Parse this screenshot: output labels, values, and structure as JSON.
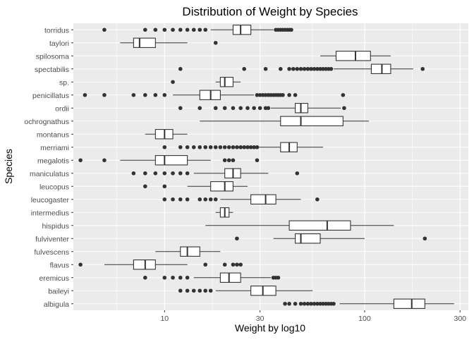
{
  "chart_data": {
    "type": "boxplot",
    "title": "Distribution of Weight by Species",
    "xlabel": "Weight by log10",
    "ylabel": "Species",
    "xscale": "log10",
    "xlim": [
      3.5,
      330
    ],
    "x_ticks": [
      10,
      30,
      100,
      300
    ],
    "grid": true,
    "legend": "none",
    "colors": {
      "panel": "#EBEBEB",
      "grid_major": "#FFFFFF",
      "box_fill": "#FFFFFF",
      "box_stroke": "#333333",
      "point": "#333333",
      "axis_text": "#4D4D4D",
      "title_text": "#000000"
    },
    "categories": [
      "albigula",
      "baileyi",
      "eremicus",
      "flavus",
      "fulvescens",
      "fulviventer",
      "hispidus",
      "intermedius",
      "leucogaster",
      "leucopus",
      "maniculatus",
      "megalotis",
      "merriami",
      "montanus",
      "ochrognathus",
      "ordii",
      "penicillatus",
      "sp.",
      "spectabilis",
      "spilosoma",
      "taylori",
      "torridus"
    ],
    "series": [
      {
        "species": "albigula",
        "whisker_low": 75,
        "q1": 140,
        "median": 172,
        "q3": 200,
        "whisker_high": 280,
        "outliers": [
          40,
          42,
          45,
          48,
          50,
          52,
          54,
          56,
          58,
          60,
          62,
          64,
          66,
          68,
          70
        ]
      },
      {
        "species": "baileyi",
        "whisker_low": 18,
        "q1": 27,
        "median": 31,
        "q3": 36,
        "whisker_high": 55,
        "outliers": [
          12,
          13,
          14,
          15,
          16,
          17
        ]
      },
      {
        "species": "eremicus",
        "whisker_low": 14,
        "q1": 19,
        "median": 21,
        "q3": 24,
        "whisker_high": 34,
        "outliers": [
          8,
          10,
          11,
          12,
          13,
          35,
          36,
          37
        ]
      },
      {
        "species": "flavus",
        "whisker_low": 5,
        "q1": 7,
        "median": 8,
        "q3": 9,
        "whisker_high": 13,
        "outliers": [
          3.8,
          16,
          20,
          22,
          23,
          24
        ]
      },
      {
        "species": "fulvescens",
        "whisker_low": 9,
        "q1": 12,
        "median": 13,
        "q3": 15,
        "whisker_high": 19,
        "outliers": []
      },
      {
        "species": "fulviventer",
        "whisker_low": 35,
        "q1": 45,
        "median": 48,
        "q3": 60,
        "whisker_high": 100,
        "outliers": [
          23,
          200
        ]
      },
      {
        "species": "hispidus",
        "whisker_low": 16,
        "q1": 42,
        "median": 65,
        "q3": 85,
        "whisker_high": 140,
        "outliers": []
      },
      {
        "species": "intermedius",
        "whisker_low": 18,
        "q1": 19,
        "median": 20,
        "q3": 21,
        "whisker_high": 22,
        "outliers": []
      },
      {
        "species": "leucogaster",
        "whisker_low": 19,
        "q1": 27,
        "median": 32,
        "q3": 36,
        "whisker_high": 48,
        "outliers": [
          10,
          11,
          12,
          13,
          15,
          16,
          17,
          18,
          58
        ]
      },
      {
        "species": "leucopus",
        "whisker_low": 13,
        "q1": 17,
        "median": 20,
        "q3": 22,
        "whisker_high": 26,
        "outliers": [
          8,
          10
        ]
      },
      {
        "species": "maniculatus",
        "whisker_low": 14,
        "q1": 20,
        "median": 22,
        "q3": 24,
        "whisker_high": 33,
        "outliers": [
          7,
          8,
          9,
          10,
          11,
          12,
          13,
          46
        ]
      },
      {
        "species": "megalotis",
        "whisker_low": 6,
        "q1": 9,
        "median": 10,
        "q3": 13,
        "whisker_high": 17,
        "outliers": [
          3.8,
          5,
          20,
          21,
          22,
          29
        ]
      },
      {
        "species": "merriami",
        "whisker_low": 28,
        "q1": 38,
        "median": 42,
        "q3": 46,
        "whisker_high": 62,
        "outliers": [
          10,
          12,
          13,
          14,
          15,
          16,
          17,
          18,
          19,
          20,
          21,
          22,
          23,
          24,
          25,
          26,
          27,
          28,
          29
        ]
      },
      {
        "species": "montanus",
        "whisker_low": 8,
        "q1": 9,
        "median": 10,
        "q3": 11,
        "whisker_high": 13,
        "outliers": []
      },
      {
        "species": "ochrognathus",
        "whisker_low": 15,
        "q1": 38,
        "median": 48,
        "q3": 78,
        "whisker_high": 105,
        "outliers": []
      },
      {
        "species": "ordii",
        "whisker_low": 34,
        "q1": 45,
        "median": 48,
        "q3": 52,
        "whisker_high": 76,
        "outliers": [
          12,
          15,
          18,
          20,
          22,
          24,
          26,
          28,
          30,
          32,
          33,
          79
        ]
      },
      {
        "species": "penicillatus",
        "whisker_low": 11,
        "q1": 15,
        "median": 17,
        "q3": 19,
        "whisker_high": 28,
        "outliers": [
          4,
          5,
          7,
          8,
          9,
          10,
          29,
          30,
          31,
          32,
          33,
          34,
          35,
          36,
          37,
          38,
          39,
          42,
          45,
          78
        ]
      },
      {
        "species": "sp.",
        "whisker_low": 18,
        "q1": 19,
        "median": 20,
        "q3": 22,
        "whisker_high": 24,
        "outliers": [
          11
        ]
      },
      {
        "species": "spectabilis",
        "whisker_low": 70,
        "q1": 108,
        "median": 122,
        "q3": 135,
        "whisker_high": 175,
        "outliers": [
          12,
          25,
          32,
          38,
          42,
          44,
          46,
          48,
          50,
          52,
          54,
          56,
          58,
          60,
          62,
          64,
          66,
          68,
          195
        ]
      },
      {
        "species": "spilosoma",
        "whisker_low": 60,
        "q1": 72,
        "median": 90,
        "q3": 107,
        "whisker_high": 135,
        "outliers": []
      },
      {
        "species": "taylori",
        "whisker_low": 6,
        "q1": 7,
        "median": 7.5,
        "q3": 9,
        "whisker_high": 13,
        "outliers": [
          18
        ]
      },
      {
        "species": "torridus",
        "whisker_low": 17,
        "q1": 22,
        "median": 24,
        "q3": 27,
        "whisker_high": 35,
        "outliers": [
          5,
          8,
          9,
          10,
          11,
          12,
          13,
          14,
          15,
          16,
          36,
          37,
          38,
          39,
          40,
          41,
          42,
          43
        ]
      }
    ]
  }
}
